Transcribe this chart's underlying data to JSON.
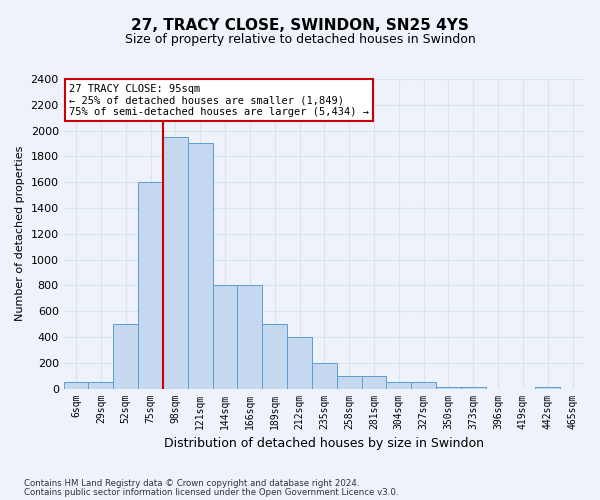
{
  "title": "27, TRACY CLOSE, SWINDON, SN25 4YS",
  "subtitle": "Size of property relative to detached houses in Swindon",
  "xlabel": "Distribution of detached houses by size in Swindon",
  "ylabel": "Number of detached properties",
  "categories": [
    "6sqm",
    "29sqm",
    "52sqm",
    "75sqm",
    "98sqm",
    "121sqm",
    "144sqm",
    "166sqm",
    "189sqm",
    "212sqm",
    "235sqm",
    "258sqm",
    "281sqm",
    "304sqm",
    "327sqm",
    "350sqm",
    "373sqm",
    "396sqm",
    "419sqm",
    "442sqm",
    "465sqm"
  ],
  "values": [
    50,
    50,
    500,
    1600,
    1950,
    1900,
    800,
    800,
    500,
    400,
    200,
    100,
    100,
    50,
    50,
    10,
    10,
    0,
    0,
    10,
    0
  ],
  "bar_color": "#c5d8f0",
  "bar_edge_color": "#5a9fd4",
  "highlight_index": 4,
  "highlight_color": "#cc0000",
  "ylim": [
    0,
    2400
  ],
  "yticks": [
    0,
    200,
    400,
    600,
    800,
    1000,
    1200,
    1400,
    1600,
    1800,
    2000,
    2200,
    2400
  ],
  "annotation_title": "27 TRACY CLOSE: 95sqm",
  "annotation_line1": "← 25% of detached houses are smaller (1,849)",
  "annotation_line2": "75% of semi-detached houses are larger (5,434) →",
  "footnote1": "Contains HM Land Registry data © Crown copyright and database right 2024.",
  "footnote2": "Contains public sector information licensed under the Open Government Licence v3.0.",
  "bg_color": "#eef2fa",
  "grid_color": "#d8e4f0",
  "annotation_box_color": "#ffffff",
  "annotation_box_edge": "#cc0000",
  "title_fontsize": 11,
  "subtitle_fontsize": 9
}
